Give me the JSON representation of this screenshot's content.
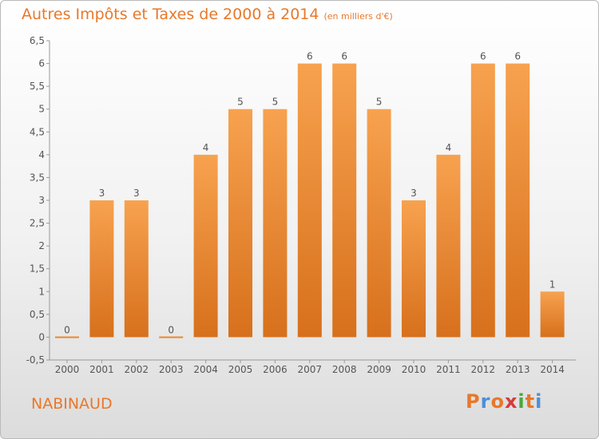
{
  "header": {
    "title": "Autres Impôts et Taxes de 2000 à 2014",
    "unit": "(en milliers d'€)"
  },
  "footer": {
    "place": "NABINAUD",
    "logo": "Proxiti",
    "logo_colors": [
      "#e8782a",
      "#4a90d9",
      "#e8782a",
      "#d93a3a",
      "#4aa83a",
      "#e8782a",
      "#4a90d9"
    ]
  },
  "chart_data": {
    "type": "bar",
    "title": "Autres Impôts et Taxes de 2000 à 2014",
    "xlabel": "",
    "ylabel": "",
    "categories": [
      "2000",
      "2001",
      "2002",
      "2003",
      "2004",
      "2005",
      "2006",
      "2007",
      "2008",
      "2009",
      "2010",
      "2011",
      "2012",
      "2013",
      "2014"
    ],
    "values": [
      0,
      3,
      3,
      0,
      4,
      5,
      5,
      6,
      6,
      5,
      3,
      4,
      6,
      6,
      1
    ],
    "data_labels": [
      "0",
      "3",
      "3",
      "0",
      "4",
      "5",
      "5",
      "6",
      "6",
      "5",
      "3",
      "4",
      "6",
      "6",
      "1"
    ],
    "ylim": [
      -0.5,
      6.5
    ],
    "yticks": [
      -0.5,
      0,
      0.5,
      1,
      1.5,
      2,
      2.5,
      3,
      3.5,
      4,
      4.5,
      5,
      5.5,
      6,
      6.5
    ],
    "ytick_labels": [
      "-0,5",
      "0",
      "0,5",
      "1",
      "1,5",
      "2",
      "2,5",
      "3",
      "3,5",
      "4",
      "4,5",
      "5",
      "5,5",
      "6",
      "6,5"
    ],
    "grid": false,
    "bar_color_top": "#f7a24f",
    "bar_color_bottom": "#d7701c"
  }
}
